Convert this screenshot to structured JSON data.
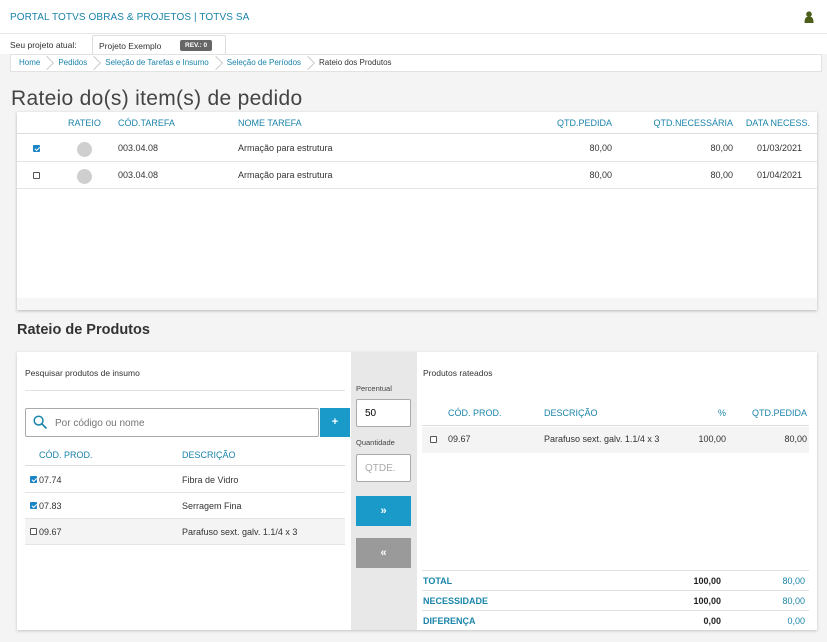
{
  "header": {
    "app_title": "PORTAL TOTVS OBRAS & PROJETOS | TOTVS SA",
    "user_icon": "user-icon"
  },
  "project": {
    "label": "Seu projeto atual:",
    "name": "Projeto Exemplo",
    "revision": "REV.: 0"
  },
  "breadcrumb": [
    "Home",
    "Pedidos",
    "Seleção de Tarefas e Insumo",
    "Seleção de Períodos",
    "Rateio dos Produtos"
  ],
  "page_title": "Rateio do(s) item(s) de pedido",
  "tasks_table": {
    "columns": [
      "RATEIO",
      "CÓD.TAREFA",
      "NOME TAREFA",
      "QTD.PEDIDA",
      "QTD.NECESSÁRIA",
      "DATA NECESS."
    ],
    "rows": [
      {
        "checked": true,
        "codigo": "003.04.08",
        "nome": "Armação para estrutura",
        "qtd_pedida": "80,00",
        "qtd_necessaria": "80,00",
        "data": "01/03/2021"
      },
      {
        "checked": false,
        "codigo": "003.04.08",
        "nome": "Armação para estrutura",
        "qtd_pedida": "80,00",
        "qtd_necessaria": "80,00",
        "data": "01/04/2021"
      }
    ]
  },
  "section_title": "Rateio de Produtos",
  "search_panel": {
    "heading": "Pesquisar produtos de insumo",
    "placeholder": "Por código ou nome",
    "add_label": "+",
    "columns": [
      "CÓD. PROD.",
      "DESCRIÇÃO"
    ],
    "rows": [
      {
        "checked": true,
        "codigo": "07.74",
        "descricao": "Fibra de Vidro"
      },
      {
        "checked": true,
        "codigo": "07.83",
        "descricao": "Serragem Fina"
      },
      {
        "checked": false,
        "codigo": "09.67",
        "descricao": "Parafuso sext. galv. 1.1/4 x 3"
      }
    ]
  },
  "middle": {
    "percent_label": "Percentual",
    "percent_value": "50",
    "qty_label": "Quantidade",
    "qty_placeholder": "QTDE.",
    "forward_label": "»",
    "back_label": "«"
  },
  "allocated_panel": {
    "heading": "Produtos rateados",
    "columns": [
      "CÓD. PROD.",
      "DESCRIÇÃO",
      "%",
      "QTD.PEDIDA"
    ],
    "rows": [
      {
        "checked": false,
        "codigo": "09.67",
        "descricao": "Parafuso sext. galv. 1.1/4 x 3",
        "percent": "100,00",
        "qtd_pedida": "80,00"
      }
    ],
    "totals": [
      {
        "label": "TOTAL",
        "v1": "100,00",
        "v2": "80,00"
      },
      {
        "label": "NECESSIDADE",
        "v1": "100,00",
        "v2": "80,00"
      },
      {
        "label": "DIFERENÇA",
        "v1": "0,00",
        "v2": "0,00"
      }
    ]
  },
  "colors": {
    "accent": "#1a84a9",
    "button": "#1a9ac9",
    "button_disabled": "#9a9a9a",
    "user_icon": "#4a5e1a"
  }
}
